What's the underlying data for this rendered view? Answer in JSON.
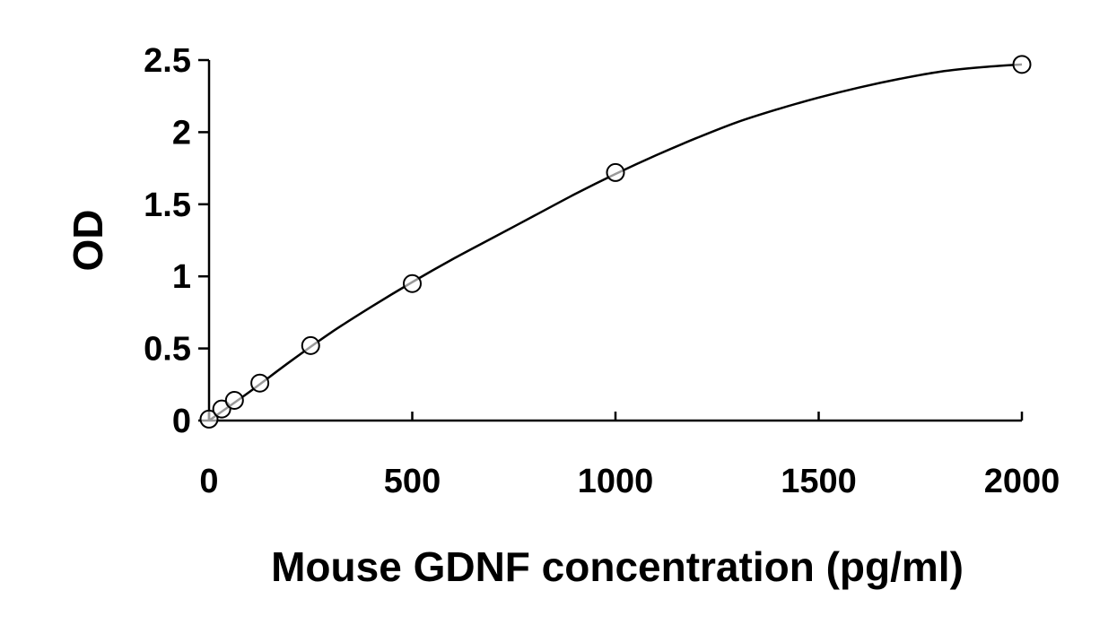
{
  "chart_data": {
    "type": "scatter",
    "title": "",
    "xlabel": "Mouse GDNF concentration (pg/ml)",
    "ylabel": "OD",
    "xlim": [
      0,
      2000
    ],
    "ylim": [
      0,
      2.5
    ],
    "x_ticks": [
      "0",
      "500",
      "1000",
      "1500",
      "2000"
    ],
    "y_ticks": [
      "0",
      "0.5",
      "1",
      "1.5",
      "2",
      "2.5"
    ],
    "grid": false,
    "legend": "none",
    "colors": {
      "line": "#000000",
      "marker_fill": "#ffffff",
      "marker_stroke": "#000000"
    },
    "series": [
      {
        "marker": "open-circle",
        "x": [
          0,
          31.25,
          62.5,
          125,
          250,
          500,
          1000,
          2000
        ],
        "y": [
          0.01,
          0.08,
          0.14,
          0.26,
          0.52,
          0.95,
          1.72,
          2.47
        ]
      }
    ],
    "fit_curve": {
      "type": "smooth",
      "x": [
        0,
        100,
        200,
        300,
        400,
        500,
        600,
        700,
        800,
        900,
        1000,
        1100,
        1200,
        1300,
        1400,
        1500,
        1600,
        1700,
        1800,
        1900,
        2000
      ],
      "y": [
        0.0,
        0.2,
        0.41,
        0.61,
        0.79,
        0.96,
        1.12,
        1.27,
        1.42,
        1.57,
        1.71,
        1.84,
        1.96,
        2.07,
        2.16,
        2.24,
        2.31,
        2.37,
        2.42,
        2.45,
        2.47
      ]
    }
  }
}
